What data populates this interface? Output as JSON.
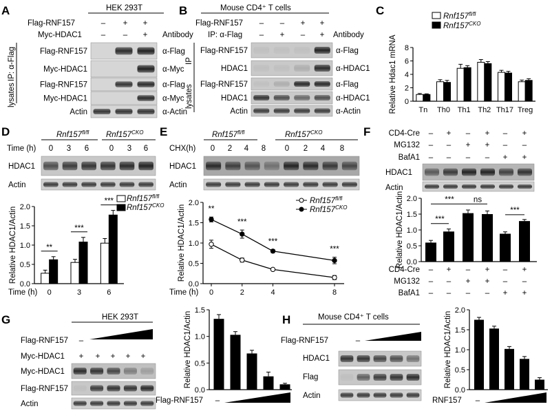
{
  "panels": {
    "A": {
      "letter": "A",
      "cell": "HEK 293T",
      "rows_top": [
        "Flag-RNF157",
        "Myc-HDAC1"
      ],
      "top_marks": [
        [
          "–",
          "+",
          "+"
        ],
        [
          "–",
          "–",
          "+"
        ]
      ],
      "antibody": "Antibody",
      "ip_label": "IP: α-Flag",
      "lysates": "lysates",
      "blots": [
        {
          "name": "Flag-RNF157",
          "ab": "α-Flag"
        },
        {
          "name": "Myc-HDAC1",
          "ab": "α-Myc"
        },
        {
          "name": "Flag-RNF157",
          "ab": "α-Flag"
        },
        {
          "name": "Myc-HDAC1",
          "ab": "α-Myc"
        },
        {
          "name": "Actin",
          "ab": "α-Actin"
        }
      ]
    },
    "B": {
      "letter": "B",
      "cell": "Mouse CD4⁺ T cells",
      "rows_top": [
        "Flag-RNF157",
        "IP: α-Flag"
      ],
      "top_marks": [
        [
          "–",
          "–",
          "+",
          "+"
        ],
        [
          "–",
          "+",
          "–",
          "+"
        ]
      ],
      "antibody": "Antibody",
      "ip_label": "IP",
      "lysates": "lysates",
      "blots": [
        {
          "name": "Flag-RNF157",
          "ab": "α-Flag"
        },
        {
          "name": "HDAC1",
          "ab": "α-HDAC1"
        },
        {
          "name": "Flag-RNF157",
          "ab": "α-Flag"
        },
        {
          "name": "HDAC1",
          "ab": "α-HDAC1"
        },
        {
          "name": "Actin",
          "ab": "α-Actin"
        }
      ]
    },
    "C": {
      "letter": "C"
    },
    "D": {
      "letter": "D",
      "g1": "Rnf157",
      "g1sup": "fl/fl",
      "g2": "Rnf157",
      "g2sup": "CKO",
      "time_label": "Time (h)",
      "times": [
        "0",
        "3",
        "6",
        "0",
        "3",
        "6"
      ],
      "blots": [
        "HDAC1",
        "Actin"
      ]
    },
    "E": {
      "letter": "E",
      "g1": "Rnf157",
      "g1sup": "fl/fl",
      "g2": "Rnf157",
      "g2sup": "CKO",
      "chx_label": "CHX(h)",
      "times": [
        "0",
        "2",
        "4",
        "8",
        "0",
        "2",
        "4",
        "8"
      ],
      "blots": [
        "HDAC1",
        "Actin"
      ]
    },
    "F": {
      "letter": "F",
      "rows": [
        "CD4-Cre",
        "MG132",
        "BafA1"
      ],
      "marks": [
        [
          "–",
          "+",
          "–",
          "+",
          "–",
          "+"
        ],
        [
          "–",
          "–",
          "+",
          "+",
          "–",
          "–"
        ],
        [
          "–",
          "–",
          "–",
          "–",
          "+",
          "+"
        ]
      ],
      "blots": [
        "HDAC1",
        "Actin"
      ]
    },
    "G": {
      "letter": "G",
      "cell": "HEK 293T",
      "rows": [
        "Flag-RNF157",
        "Myc-HDAC1"
      ],
      "minus": "–",
      "plus": [
        "+",
        "+",
        "+",
        "+",
        "+"
      ],
      "blots": [
        "Myc-HDAC1",
        "Flag-RNF157",
        "Actin"
      ]
    },
    "H": {
      "letter": "H",
      "cell": "Mouse CD4⁺ T cells",
      "rows": [
        "Flag-RNF157"
      ],
      "minus": "–",
      "blots": [
        "HDAC1",
        "Flag",
        "Actin"
      ]
    }
  },
  "chart_data": [
    {
      "id": "C",
      "type": "bar",
      "categories": [
        "Tn",
        "Th0",
        "Th1",
        "Th2",
        "Th17",
        "Treg"
      ],
      "ylabel": "Relative Hdac1 mRNA",
      "ylim": [
        0,
        8
      ],
      "yticks": [
        "0",
        "2",
        "4",
        "6",
        "8"
      ],
      "series": [
        {
          "name": "Rnf157fl/fl",
          "values": [
            1.0,
            2.9,
            4.9,
            5.8,
            4.3,
            2.9
          ],
          "err": [
            0.15,
            0.3,
            0.6,
            0.4,
            0.3,
            0.25
          ],
          "color": "#ffffff"
        },
        {
          "name": "Rnf157CKO",
          "values": [
            1.0,
            2.8,
            5.0,
            5.6,
            4.2,
            3.1
          ],
          "err": [
            0.1,
            0.3,
            0.3,
            0.3,
            0.25,
            0.25
          ],
          "color": "#000000"
        }
      ],
      "legend": [
        {
          "base": "Rnf157",
          "sup": "fl/fl"
        },
        {
          "base": "Rnf157",
          "sup": "CKO"
        }
      ]
    },
    {
      "id": "D",
      "type": "bar",
      "categories": [
        "0",
        "3",
        "6"
      ],
      "xlabel": "Time (h)",
      "ylabel": "Relative HDAC1/Actin",
      "ylim": [
        0,
        2.0
      ],
      "yticks": [
        "0.0",
        "0.5",
        "1.0",
        "1.5",
        "2.0"
      ],
      "series": [
        {
          "name": "Rnf157fl/fl",
          "values": [
            0.27,
            0.55,
            1.05
          ],
          "err": [
            0.08,
            0.08,
            0.12
          ],
          "color": "#ffffff"
        },
        {
          "name": "Rnf157CKO",
          "values": [
            0.62,
            1.08,
            1.78
          ],
          "err": [
            0.08,
            0.12,
            0.12
          ],
          "color": "#000000"
        }
      ],
      "annotations": [
        "**",
        "***",
        "***"
      ],
      "legend": [
        {
          "base": "Rnf157",
          "sup": "fl/fl"
        },
        {
          "base": "Rnf157",
          "sup": "CKO"
        }
      ]
    },
    {
      "id": "E",
      "type": "line",
      "x": [
        0,
        2,
        4,
        8
      ],
      "xticks": [
        "0",
        "2",
        "4",
        "8"
      ],
      "xlabel": "Time (h)",
      "ylabel": "Relative HDAC1/Actin",
      "ylim": [
        0,
        2.0
      ],
      "yticks": [
        "0.0",
        "0.5",
        "1.0",
        "1.5",
        "2.0"
      ],
      "series": [
        {
          "name": "Rnf157fl/fl",
          "values": [
            0.97,
            0.58,
            0.35,
            0.15
          ],
          "err": [
            0.1,
            0.05,
            0.03,
            0.05
          ],
          "marker": "open"
        },
        {
          "name": "Rnf157CKO",
          "values": [
            1.58,
            1.22,
            0.8,
            0.57
          ],
          "err": [
            0.06,
            0.1,
            0.04,
            0.08
          ],
          "marker": "filled"
        }
      ],
      "annotations": [
        "**",
        "***",
        "***",
        "***"
      ],
      "legend": [
        {
          "base": "Rnf157",
          "sup": "fl/fl"
        },
        {
          "base": "Rnf157",
          "sup": "CKO"
        }
      ]
    },
    {
      "id": "F",
      "type": "bar",
      "ylabel": "Relative HDAC1/Actin",
      "ylim": [
        0,
        2.0
      ],
      "yticks": [
        "0.0",
        "0.5",
        "1.0",
        "1.5",
        "2.0"
      ],
      "values": [
        0.6,
        0.95,
        1.53,
        1.5,
        0.88,
        1.28
      ],
      "err": [
        0.07,
        0.08,
        0.1,
        0.1,
        0.06,
        0.05
      ],
      "rows": [
        "CD4-Cre",
        "MG132",
        "BafA1"
      ],
      "marks": [
        [
          "–",
          "+",
          "–",
          "+",
          "–",
          "+"
        ],
        [
          "–",
          "–",
          "+",
          "+",
          "–",
          "–"
        ],
        [
          "–",
          "–",
          "–",
          "–",
          "+",
          "+"
        ]
      ],
      "annotations": [
        "***",
        "***",
        "ns",
        "***"
      ]
    },
    {
      "id": "G",
      "type": "bar",
      "ylabel": "Relative HDAC1/Actin",
      "ylim": [
        0,
        1.5
      ],
      "yticks": [
        "0.0",
        "0.5",
        "1.0",
        "1.5"
      ],
      "values": [
        1.33,
        1.03,
        0.68,
        0.25,
        0.1
      ],
      "err": [
        0.08,
        0.06,
        0.06,
        0.08,
        0.02
      ],
      "xlabel": "Flag-RNF157",
      "minus": "–"
    },
    {
      "id": "H",
      "type": "bar",
      "ylabel": "Relative HDAC1/Actin",
      "ylim": [
        0,
        2.0
      ],
      "yticks": [
        "0.0",
        "0.5",
        "1.0",
        "1.5",
        "2.0"
      ],
      "values": [
        1.75,
        1.53,
        1.02,
        0.77,
        0.25
      ],
      "err": [
        0.06,
        0.06,
        0.06,
        0.06,
        0.05
      ],
      "xlabel": "RNF157",
      "minus": "–"
    }
  ]
}
